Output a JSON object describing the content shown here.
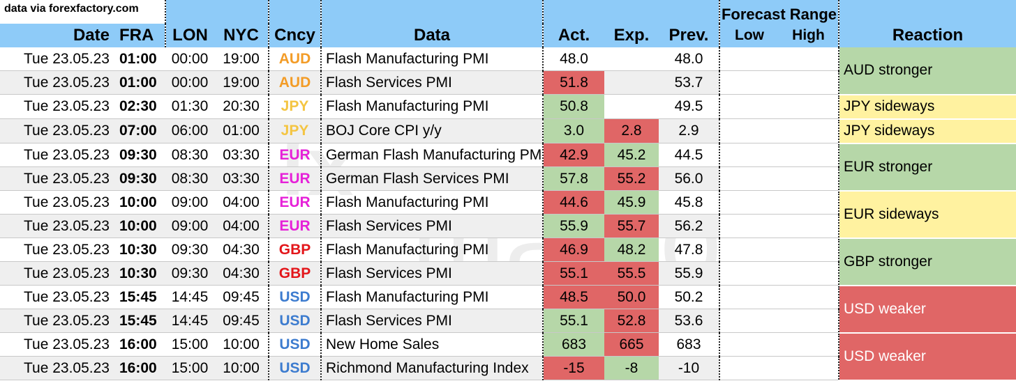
{
  "source_note": "data via forexfactory.com",
  "columns": {
    "date": "Date",
    "fra": "FRA",
    "lon": "LON",
    "nyc": "NYC",
    "cncy": "Cncy",
    "data": "Data",
    "act": "Act.",
    "exp": "Exp.",
    "prev": "Prev.",
    "forecast_range": "Forecast Range",
    "low": "Low",
    "high": "High",
    "reaction": "Reaction"
  },
  "colors": {
    "header_bg": "#8ecbf8",
    "green": "#b6d7a8",
    "red": "#e06666",
    "yellow": "#fff2a0",
    "AUD": "#f39c27",
    "JPY": "#f4c542",
    "EUR": "#e621d8",
    "GBP": "#e3161a",
    "USD": "#3d7ccf"
  },
  "rows": [
    {
      "date": "Tue 23.05.23",
      "fra": "01:00",
      "lon": "00:00",
      "nyc": "19:00",
      "cur": "AUD",
      "event": "Flash Manufacturing PMI",
      "act": "48.0",
      "act_status": "none",
      "exp": "",
      "exp_status": "none",
      "prev": "48.0"
    },
    {
      "date": "Tue 23.05.23",
      "fra": "01:00",
      "lon": "00:00",
      "nyc": "19:00",
      "cur": "AUD",
      "event": "Flash Services PMI",
      "act": "51.8",
      "act_status": "red",
      "exp": "",
      "exp_status": "none",
      "prev": "53.7"
    },
    {
      "date": "Tue 23.05.23",
      "fra": "02:30",
      "lon": "01:30",
      "nyc": "20:30",
      "cur": "JPY",
      "event": "Flash Manufacturing PMI",
      "act": "50.8",
      "act_status": "green",
      "exp": "",
      "exp_status": "none",
      "prev": "49.5"
    },
    {
      "date": "Tue 23.05.23",
      "fra": "07:00",
      "lon": "06:00",
      "nyc": "01:00",
      "cur": "JPY",
      "event": "BOJ Core CPI y/y",
      "act": "3.0",
      "act_status": "green",
      "exp": "2.8",
      "exp_status": "red",
      "prev": "2.9"
    },
    {
      "date": "Tue 23.05.23",
      "fra": "09:30",
      "lon": "08:30",
      "nyc": "03:30",
      "cur": "EUR",
      "event": "German Flash Manufacturing PMI",
      "act": "42.9",
      "act_status": "red",
      "exp": "45.2",
      "exp_status": "green",
      "prev": "44.5"
    },
    {
      "date": "Tue 23.05.23",
      "fra": "09:30",
      "lon": "08:30",
      "nyc": "03:30",
      "cur": "EUR",
      "event": "German Flash Services PMI",
      "act": "57.8",
      "act_status": "green",
      "exp": "55.2",
      "exp_status": "red",
      "prev": "56.0"
    },
    {
      "date": "Tue 23.05.23",
      "fra": "10:00",
      "lon": "09:00",
      "nyc": "04:00",
      "cur": "EUR",
      "event": "Flash Manufacturing PMI",
      "act": "44.6",
      "act_status": "red",
      "exp": "45.9",
      "exp_status": "green",
      "prev": "45.8"
    },
    {
      "date": "Tue 23.05.23",
      "fra": "10:00",
      "lon": "09:00",
      "nyc": "04:00",
      "cur": "EUR",
      "event": "Flash Services PMI",
      "act": "55.9",
      "act_status": "green",
      "exp": "55.7",
      "exp_status": "red",
      "prev": "56.2"
    },
    {
      "date": "Tue 23.05.23",
      "fra": "10:30",
      "lon": "09:30",
      "nyc": "04:30",
      "cur": "GBP",
      "event": "Flash Manufacturing PMI",
      "act": "46.9",
      "act_status": "red",
      "exp": "48.2",
      "exp_status": "green",
      "prev": "47.8"
    },
    {
      "date": "Tue 23.05.23",
      "fra": "10:30",
      "lon": "09:30",
      "nyc": "04:30",
      "cur": "GBP",
      "event": "Flash Services PMI",
      "act": "55.1",
      "act_status": "red",
      "exp": "55.5",
      "exp_status": "red",
      "prev": "55.9"
    },
    {
      "date": "Tue 23.05.23",
      "fra": "15:45",
      "lon": "14:45",
      "nyc": "09:45",
      "cur": "USD",
      "event": "Flash Manufacturing PMI",
      "act": "48.5",
      "act_status": "red",
      "exp": "50.0",
      "exp_status": "red",
      "prev": "50.2"
    },
    {
      "date": "Tue 23.05.23",
      "fra": "15:45",
      "lon": "14:45",
      "nyc": "09:45",
      "cur": "USD",
      "event": "Flash Services PMI",
      "act": "55.1",
      "act_status": "green",
      "exp": "52.8",
      "exp_status": "red",
      "prev": "53.6"
    },
    {
      "date": "Tue 23.05.23",
      "fra": "16:00",
      "lon": "15:00",
      "nyc": "10:00",
      "cur": "USD",
      "event": "New Home Sales",
      "act": "683",
      "act_status": "green",
      "exp": "665",
      "exp_status": "red",
      "prev": "683"
    },
    {
      "date": "Tue 23.05.23",
      "fra": "16:00",
      "lon": "15:00",
      "nyc": "10:00",
      "cur": "USD",
      "event": "Richmond Manufacturing Index",
      "act": "-15",
      "act_status": "red",
      "exp": "-8",
      "exp_status": "green",
      "prev": "-10"
    }
  ],
  "reactions": [
    {
      "label": "AUD stronger",
      "rowspan": 2,
      "status": "green"
    },
    {
      "label": "JPY sideways",
      "rowspan": 1,
      "status": "yellow"
    },
    {
      "label": "JPY sideways",
      "rowspan": 1,
      "status": "yellow"
    },
    {
      "label": "EUR stronger",
      "rowspan": 2,
      "status": "green"
    },
    {
      "label": "EUR sideways",
      "rowspan": 2,
      "status": "yellow"
    },
    {
      "label": "GBP stronger",
      "rowspan": 2,
      "status": "green"
    },
    {
      "label": "USD weaker",
      "rowspan": 2,
      "status": "red"
    },
    {
      "label": "USD weaker",
      "rowspan": 2,
      "status": "red"
    }
  ],
  "watermark": {
    "top": "fx",
    "bottom": "macro"
  }
}
